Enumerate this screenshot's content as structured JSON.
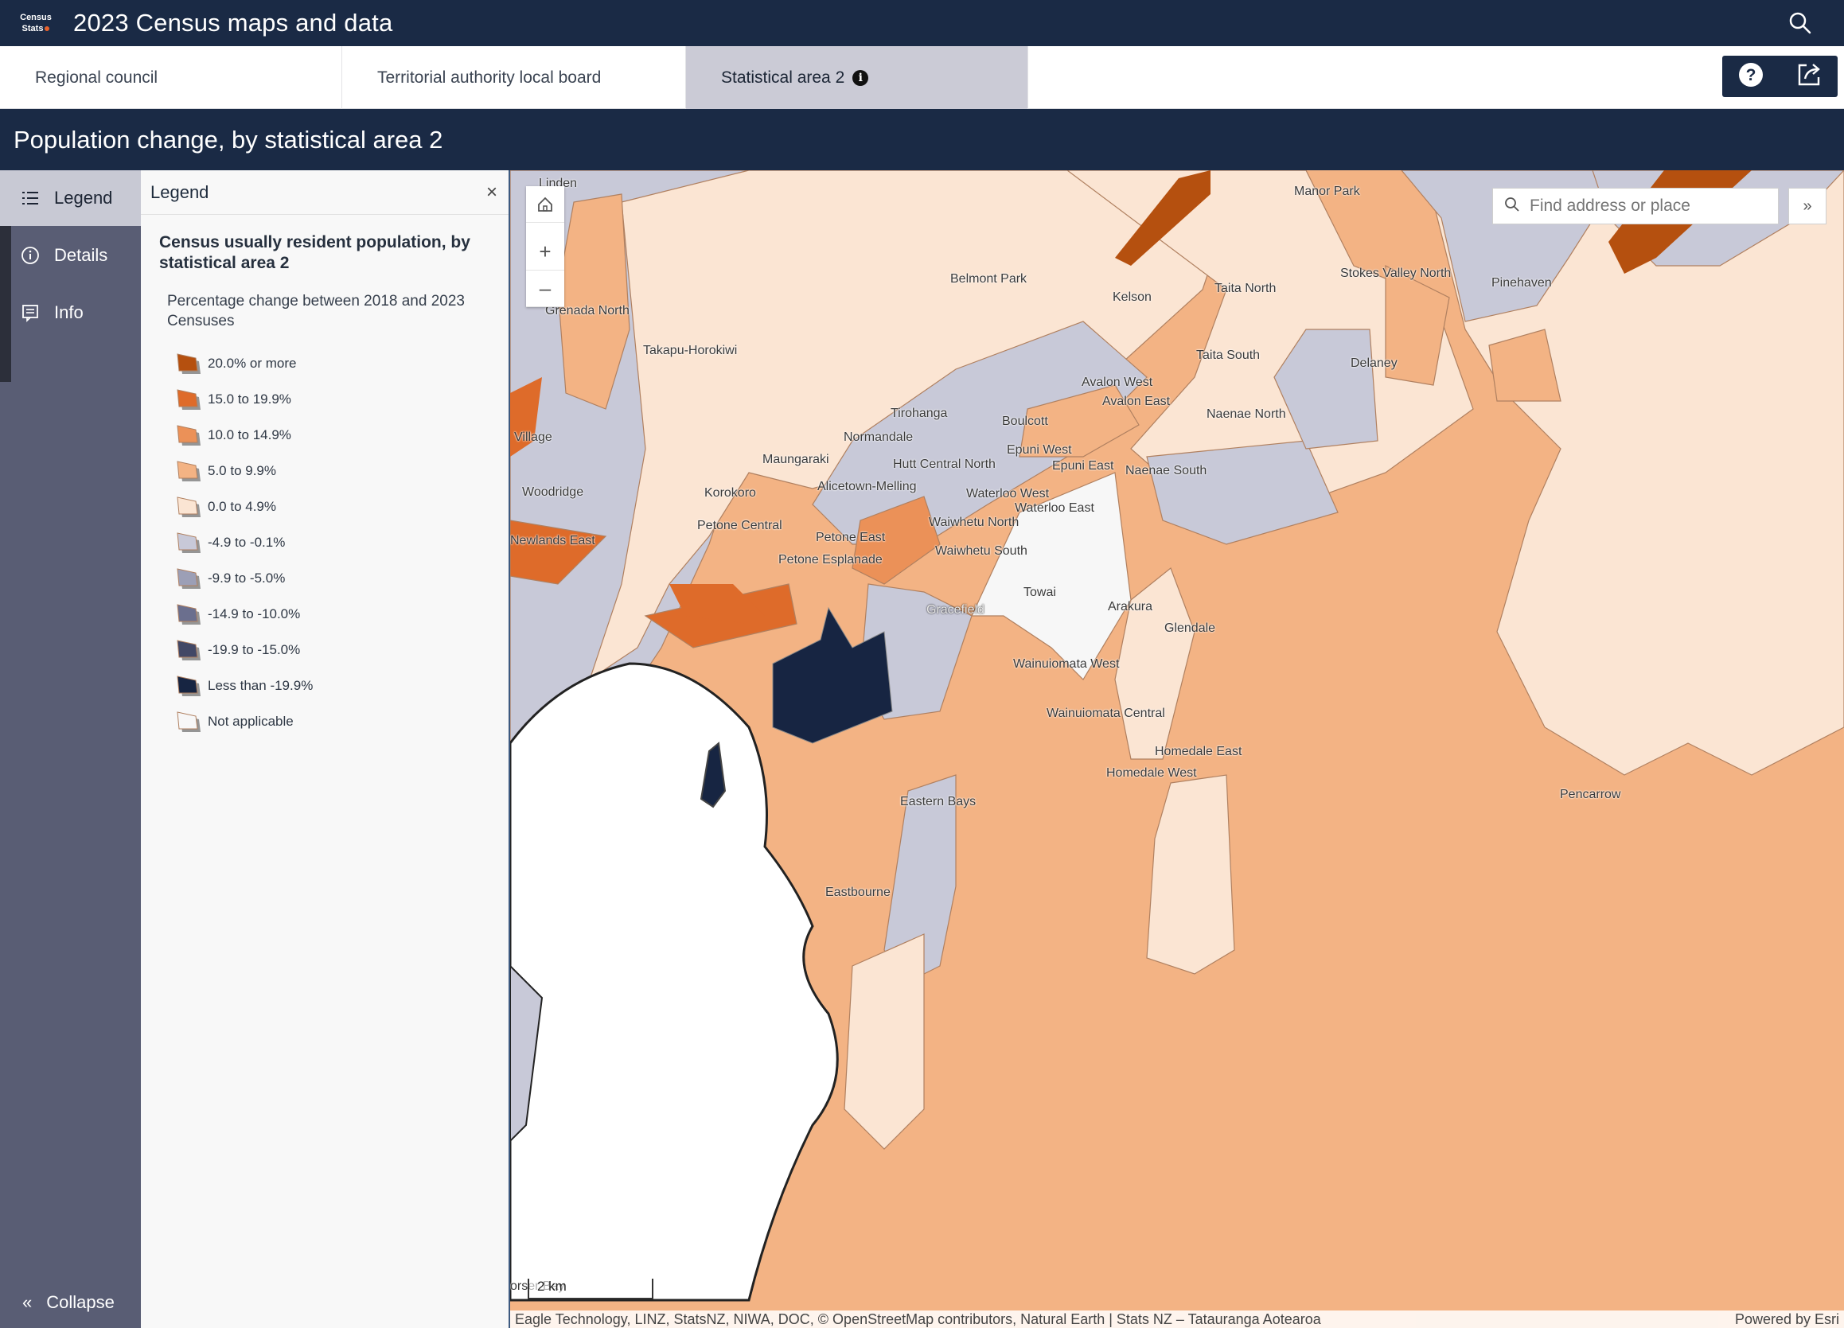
{
  "header": {
    "logo_line1": "Census",
    "logo_line2": "Stats",
    "title": "2023 Census maps and data"
  },
  "tabs": [
    {
      "label": "Regional council",
      "active": false
    },
    {
      "label": "Territorial authority local board",
      "active": false
    },
    {
      "label": "Statistical area 2",
      "active": true
    }
  ],
  "page_title": "Population change, by statistical area 2",
  "sidenav": {
    "items": [
      {
        "label": "Legend",
        "icon": "list-icon",
        "active": true
      },
      {
        "label": "Details",
        "icon": "info-circle-icon",
        "active": false
      },
      {
        "label": "Info",
        "icon": "document-icon",
        "active": false
      }
    ],
    "collapse_label": "Collapse"
  },
  "legend": {
    "title": "Legend",
    "layer_title": "Census usually resident population, by statistical area 2",
    "field_title": "Percentage change between 2018 and 2023 Censuses",
    "classes": [
      {
        "label": "20.0% or more",
        "color": "#b5500f"
      },
      {
        "label": "15.0 to 19.9%",
        "color": "#de6b2a"
      },
      {
        "label": "10.0 to 14.9%",
        "color": "#eb9158"
      },
      {
        "label": "5.0 to 9.9%",
        "color": "#f3b384"
      },
      {
        "label": "0.0 to 4.9%",
        "color": "#fbe5d3"
      },
      {
        "label": "-4.9 to -0.1%",
        "color": "#c8c9d8"
      },
      {
        "label": "-9.9 to -5.0%",
        "color": "#9c9fb6"
      },
      {
        "label": "-14.9 to -10.0%",
        "color": "#6b6f8e"
      },
      {
        "label": "-19.9 to -15.0%",
        "color": "#424866"
      },
      {
        "label": "Less than -19.9%",
        "color": "#172542"
      },
      {
        "label": "Not applicable",
        "color": "#f7f7f7"
      }
    ]
  },
  "map": {
    "search_placeholder": "Find address or place",
    "scale_label": "2 km",
    "attribution": "Eagle Technology, LINZ, StatsNZ, NIWA, DOC, © OpenStreetMap contributors, Natural Earth | Stats NZ – Tatauranga Aotearoa",
    "powered_by": "Powered by Esri",
    "place_labels": [
      "Manor Park",
      "Stokes Valley North",
      "Pinehaven",
      "Belmont Park",
      "Kelson",
      "Taita North",
      "Grenada North",
      "Takapu-Horokiwi",
      "Taita South",
      "Delaney",
      "Avalon West",
      "Avalon East",
      "Naenae North",
      "Tirohanga",
      "Boulcott",
      "Normandale",
      "Epuni West",
      "Maungaraki",
      "Hutt Central North",
      "Epuni East",
      "Naenae South",
      "Woodridge",
      "Korokoro",
      "Alicetown-Melling",
      "Waterloo West",
      "Waterloo East",
      "Waiwhetu North",
      "Petone Central",
      "Newlands East",
      "Petone East",
      "Waiwhetu South",
      "Petone Esplanade",
      "Towai",
      "Gracefield",
      "Arakura",
      "Glendale",
      "Wainuiomata West",
      "Wainuiomata Central",
      "Homedale East",
      "Homedale West",
      "Pencarrow",
      "Eastern Bays",
      "Eastbourne",
      "Linden",
      "Village",
      "orser Bay"
    ]
  }
}
